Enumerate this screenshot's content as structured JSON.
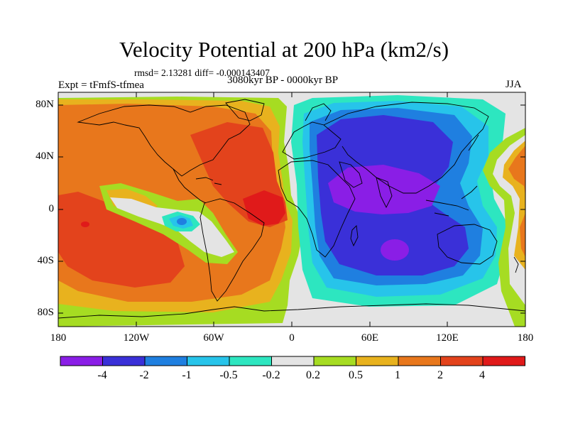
{
  "title": "Velocity Potential at 200 hPa (km2/s)",
  "stats": "rmsd= 2.13281 diff= -0.000143407",
  "experiment": "Expt = tFmfS-tfmea",
  "period": "3080kyr BP - 0000kyr BP",
  "season": "JJA",
  "y_ticks": [
    "80N",
    "40N",
    "0",
    "40S",
    "80S"
  ],
  "x_ticks": [
    "180",
    "120W",
    "60W",
    "0",
    "60E",
    "120E",
    "180"
  ],
  "colorbar": {
    "labels": [
      "-4",
      "-2",
      "-1",
      "-0.5",
      "-0.2",
      "0.2",
      "0.5",
      "1",
      "2",
      "4"
    ],
    "colors": [
      "#8a1ee6",
      "#3a30d8",
      "#1f7fe0",
      "#27c4ea",
      "#2de6c0",
      "#e4e4e4",
      "#a6dc22",
      "#e8b21e",
      "#e8771c",
      "#e3431c",
      "#e01a1a"
    ]
  },
  "palette": {
    "neutral": "#e4e4e4",
    "pos_02": "#a6dc22",
    "pos_05": "#e8b21e",
    "pos_1": "#e8771c",
    "pos_2": "#e3431c",
    "pos_4": "#e01a1a",
    "neg_02": "#2de6c0",
    "neg_05": "#27c4ea",
    "neg_1": "#1f7fe0",
    "neg_2": "#3a30d8",
    "neg_4": "#8a1ee6"
  }
}
